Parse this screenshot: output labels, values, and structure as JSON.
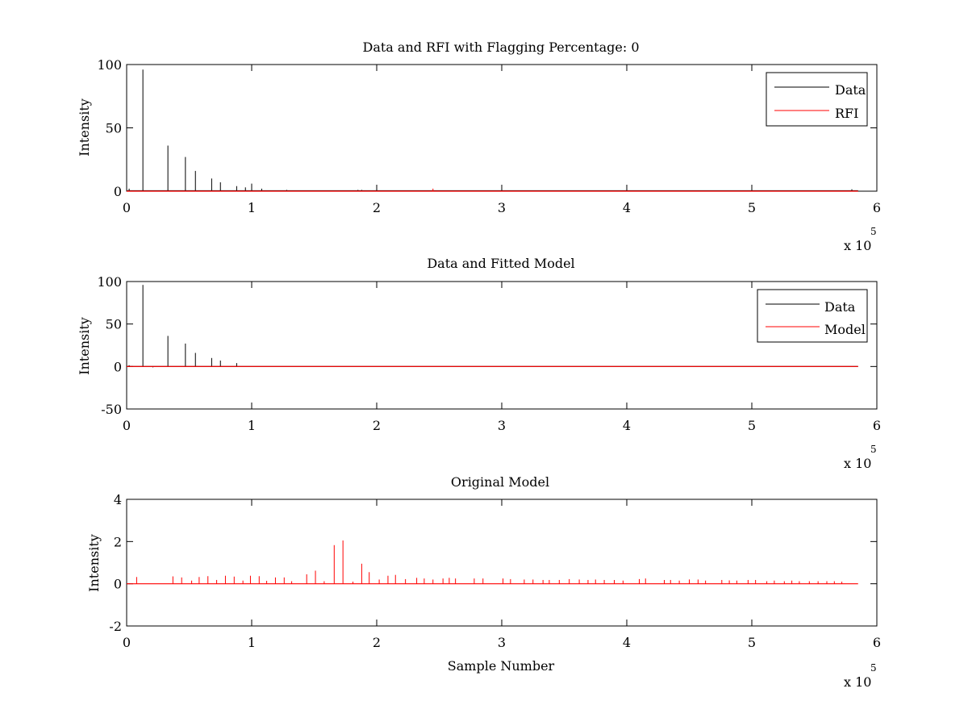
{
  "chart_data": [
    {
      "type": "line",
      "title": "Data and RFI with Flagging Percentage: 0",
      "xlabel": "",
      "ylabel": "Intensity",
      "xlim": [
        0,
        6
      ],
      "ylim": [
        0,
        100
      ],
      "xticks": [
        0,
        1,
        2,
        3,
        4,
        5,
        6
      ],
      "yticks": [
        0,
        50,
        100
      ],
      "x_multiplier": {
        "base": "x 10",
        "exponent": "5"
      },
      "legend": {
        "placement": "top-right",
        "entries": [
          "Data",
          "RFI"
        ]
      },
      "series": [
        {
          "name": "Data",
          "color": "#000000",
          "baseline": 0.3,
          "spikes": [
            [
              0.02,
              2
            ],
            [
              0.13,
              96
            ],
            [
              0.33,
              36
            ],
            [
              0.47,
              27
            ],
            [
              0.55,
              16
            ],
            [
              0.68,
              10
            ],
            [
              0.75,
              7
            ],
            [
              0.88,
              4
            ],
            [
              0.95,
              3
            ],
            [
              1.0,
              6
            ],
            [
              1.08,
              2
            ],
            [
              1.28,
              1
            ],
            [
              1.85,
              1
            ],
            [
              1.88,
              1
            ],
            [
              5.8,
              1.5
            ]
          ]
        },
        {
          "name": "RFI",
          "color": "#ff0000",
          "baseline": 0,
          "spikes": [
            [
              2.45,
              2
            ]
          ]
        }
      ]
    },
    {
      "type": "line",
      "title": "Data and Fitted Model",
      "xlabel": "",
      "ylabel": "Intensity",
      "xlim": [
        0,
        6
      ],
      "ylim": [
        -50,
        100
      ],
      "xticks": [
        0,
        1,
        2,
        3,
        4,
        5,
        6
      ],
      "yticks": [
        -50,
        0,
        50,
        100
      ],
      "x_multiplier": {
        "base": "x 10",
        "exponent": "5"
      },
      "legend": {
        "placement": "top-right",
        "entries": [
          "Data",
          "Model"
        ]
      },
      "series": [
        {
          "name": "Data",
          "color": "#000000",
          "baseline": 0,
          "spikes": [
            [
              0.02,
              1.5
            ],
            [
              0.13,
              96
            ],
            [
              0.21,
              -1
            ],
            [
              0.33,
              36
            ],
            [
              0.47,
              27
            ],
            [
              0.55,
              16
            ],
            [
              0.68,
              10
            ],
            [
              0.75,
              7
            ],
            [
              0.88,
              4
            ]
          ]
        },
        {
          "name": "Model",
          "color": "#ff0000",
          "baseline": 0,
          "spikes": []
        }
      ]
    },
    {
      "type": "line",
      "title": "Original Model",
      "xlabel": "Sample Number",
      "ylabel": "Intensity",
      "xlim": [
        0,
        6
      ],
      "ylim": [
        -2,
        4
      ],
      "xticks": [
        0,
        1,
        2,
        3,
        4,
        5,
        6
      ],
      "yticks": [
        -2,
        0,
        2,
        4
      ],
      "x_multiplier": {
        "base": "x 10",
        "exponent": "5"
      },
      "legend": null,
      "series": [
        {
          "name": "",
          "color": "#ff0000",
          "baseline": 0,
          "spikes": [
            [
              0.08,
              0.32
            ],
            [
              0.37,
              0.35
            ],
            [
              0.44,
              0.3
            ],
            [
              0.52,
              0.15
            ],
            [
              0.58,
              0.32
            ],
            [
              0.65,
              0.36
            ],
            [
              0.72,
              0.18
            ],
            [
              0.79,
              0.38
            ],
            [
              0.86,
              0.34
            ],
            [
              0.93,
              0.15
            ],
            [
              0.99,
              0.38
            ],
            [
              1.06,
              0.36
            ],
            [
              1.12,
              0.14
            ],
            [
              1.19,
              0.3
            ],
            [
              1.26,
              0.3
            ],
            [
              1.32,
              0.12
            ],
            [
              1.44,
              0.45
            ],
            [
              1.51,
              0.62
            ],
            [
              1.58,
              0.12
            ],
            [
              1.66,
              1.83
            ],
            [
              1.73,
              2.05
            ],
            [
              1.81,
              0.1
            ],
            [
              1.88,
              0.95
            ],
            [
              1.94,
              0.55
            ],
            [
              2.02,
              0.2
            ],
            [
              2.09,
              0.38
            ],
            [
              2.15,
              0.42
            ],
            [
              2.23,
              0.22
            ],
            [
              2.32,
              0.28
            ],
            [
              2.38,
              0.25
            ],
            [
              2.45,
              0.2
            ],
            [
              2.53,
              0.25
            ],
            [
              2.58,
              0.28
            ],
            [
              2.63,
              0.25
            ],
            [
              2.78,
              0.25
            ],
            [
              2.85,
              0.25
            ],
            [
              3.01,
              0.25
            ],
            [
              3.07,
              0.22
            ],
            [
              3.18,
              0.2
            ],
            [
              3.25,
              0.2
            ],
            [
              3.33,
              0.18
            ],
            [
              3.38,
              0.18
            ],
            [
              3.46,
              0.18
            ],
            [
              3.54,
              0.22
            ],
            [
              3.62,
              0.2
            ],
            [
              3.69,
              0.18
            ],
            [
              3.75,
              0.2
            ],
            [
              3.82,
              0.18
            ],
            [
              3.9,
              0.18
            ],
            [
              3.97,
              0.15
            ],
            [
              4.1,
              0.22
            ],
            [
              4.15,
              0.25
            ],
            [
              4.3,
              0.18
            ],
            [
              4.35,
              0.18
            ],
            [
              4.42,
              0.15
            ],
            [
              4.5,
              0.2
            ],
            [
              4.57,
              0.2
            ],
            [
              4.63,
              0.15
            ],
            [
              4.76,
              0.18
            ],
            [
              4.82,
              0.16
            ],
            [
              4.88,
              0.15
            ],
            [
              4.97,
              0.18
            ],
            [
              5.03,
              0.18
            ],
            [
              5.12,
              0.12
            ],
            [
              5.18,
              0.15
            ],
            [
              5.26,
              0.12
            ],
            [
              5.32,
              0.15
            ],
            [
              5.38,
              0.12
            ],
            [
              5.46,
              0.12
            ],
            [
              5.53,
              0.12
            ],
            [
              5.6,
              0.12
            ],
            [
              5.66,
              0.12
            ],
            [
              5.72,
              0.1
            ]
          ]
        }
      ]
    }
  ]
}
